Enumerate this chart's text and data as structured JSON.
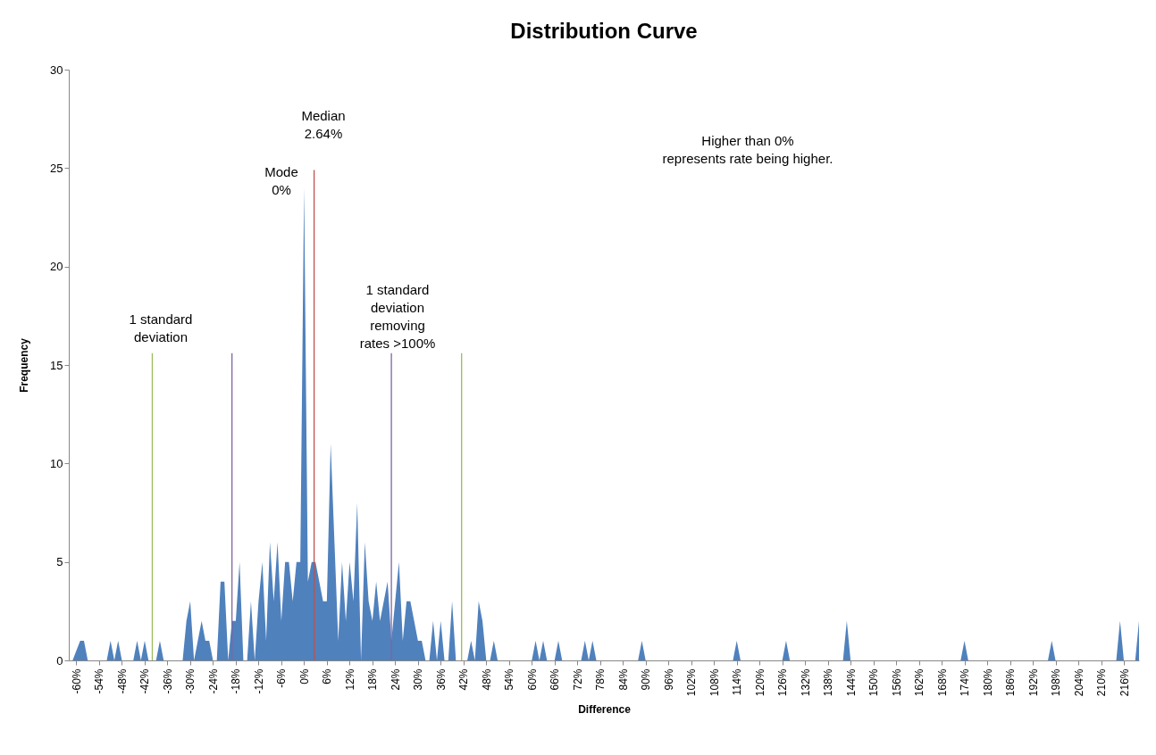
{
  "chart_data": {
    "type": "area",
    "title": "Distribution Curve",
    "xlabel": "Difference",
    "ylabel": "Frequency",
    "x": [
      -61,
      -59,
      -58,
      -57,
      -52,
      -51,
      -50,
      -49,
      -48,
      -45,
      -44,
      -43,
      -42,
      -41,
      -39,
      -38,
      -37,
      -32,
      -31,
      -30,
      -29,
      -27,
      -26,
      -25,
      -24,
      -23,
      -22,
      -21,
      -20,
      -19,
      -18,
      -17,
      -16,
      -15,
      -14,
      -13,
      -12,
      -11,
      -10,
      -9,
      -8,
      -7,
      -6,
      -5,
      -4,
      -3,
      -2,
      -1,
      0,
      1,
      2,
      3,
      4,
      5,
      6,
      7,
      8,
      9,
      10,
      11,
      12,
      13,
      14,
      15,
      16,
      17,
      18,
      19,
      20,
      21,
      22,
      23,
      24,
      25,
      26,
      27,
      28,
      29,
      30,
      31,
      32,
      33,
      34,
      35,
      36,
      37,
      38,
      39,
      40,
      43,
      44,
      45,
      46,
      47,
      48,
      49,
      50,
      51,
      60,
      61,
      62,
      63,
      64,
      66,
      67,
      68,
      73,
      74,
      75,
      76,
      77,
      88,
      89,
      90,
      113,
      114,
      115,
      126,
      127,
      128,
      142,
      143,
      144,
      173,
      174,
      175,
      196,
      197,
      198,
      214,
      215,
      216,
      219,
      220
    ],
    "series": [
      {
        "color": "#4f81bd",
        "values": [
          0,
          1,
          1,
          0,
          0,
          1,
          0,
          1,
          0,
          0,
          1,
          0,
          1,
          0,
          0,
          1,
          0,
          0,
          2,
          3,
          0,
          2,
          1,
          1,
          0,
          0,
          4,
          4,
          0,
          2,
          2,
          5,
          0,
          0,
          3,
          0,
          3,
          5,
          1,
          6,
          3,
          6,
          2,
          5,
          5,
          3,
          5,
          5,
          24,
          4,
          5,
          5,
          4,
          3,
          3,
          11,
          6,
          1,
          5,
          2,
          5,
          3,
          8,
          0,
          6,
          3,
          2,
          4,
          2,
          3,
          4,
          1,
          3,
          5,
          1,
          3,
          3,
          2,
          1,
          1,
          0,
          0,
          2,
          0,
          2,
          0,
          0,
          3,
          0,
          0,
          1,
          0,
          3,
          2,
          0,
          0,
          1,
          0,
          0,
          1,
          0,
          1,
          0,
          0,
          1,
          0,
          0,
          1,
          0,
          1,
          0,
          0,
          1,
          0,
          0,
          1,
          0,
          0,
          1,
          0,
          0,
          2,
          0,
          0,
          1,
          0,
          0,
          1,
          0,
          0,
          2,
          0,
          0,
          2
        ]
      },
      {
        "type": "line",
        "color": "#9bbb59",
        "x": [
          -40,
          -40
        ],
        "values": [
          0,
          15.6
        ]
      },
      {
        "type": "line",
        "color": "#8064a2",
        "x": [
          -19,
          -19
        ],
        "values": [
          0,
          15.6
        ]
      },
      {
        "type": "line",
        "color": "#c0504d",
        "x": [
          2.64,
          2.64
        ],
        "values": [
          0,
          24.9
        ]
      },
      {
        "type": "line",
        "color": "#8064a2",
        "x": [
          23,
          23
        ],
        "values": [
          0,
          15.6
        ]
      },
      {
        "type": "line",
        "color": "#9bbb59",
        "x": [
          41.5,
          41.5
        ],
        "values": [
          0,
          15.6
        ]
      }
    ],
    "xlim": [
      -62,
      220
    ],
    "xticks": [
      {
        "value": -60,
        "label": "-60%"
      },
      {
        "value": -54,
        "label": "-54%"
      },
      {
        "value": -48,
        "label": "-48%"
      },
      {
        "value": -42,
        "label": "-42%"
      },
      {
        "value": -36,
        "label": "-36%"
      },
      {
        "value": -30,
        "label": "-30%"
      },
      {
        "value": -24,
        "label": "-24%"
      },
      {
        "value": -18,
        "label": "-18%"
      },
      {
        "value": -12,
        "label": "-12%"
      },
      {
        "value": -6,
        "label": "-6%"
      },
      {
        "value": 0,
        "label": "0%"
      },
      {
        "value": 6,
        "label": "6%"
      },
      {
        "value": 12,
        "label": "12%"
      },
      {
        "value": 18,
        "label": "18%"
      },
      {
        "value": 24,
        "label": "24%"
      },
      {
        "value": 30,
        "label": "30%"
      },
      {
        "value": 36,
        "label": "36%"
      },
      {
        "value": 42,
        "label": "42%"
      },
      {
        "value": 48,
        "label": "48%"
      },
      {
        "value": 54,
        "label": "54%"
      },
      {
        "value": 60,
        "label": "60%"
      },
      {
        "value": 66,
        "label": "66%"
      },
      {
        "value": 72,
        "label": "72%"
      },
      {
        "value": 78,
        "label": "78%"
      },
      {
        "value": 84,
        "label": "84%"
      },
      {
        "value": 90,
        "label": "90%"
      },
      {
        "value": 96,
        "label": "96%"
      },
      {
        "value": 102,
        "label": "102%"
      },
      {
        "value": 108,
        "label": "108%"
      },
      {
        "value": 114,
        "label": "114%"
      },
      {
        "value": 120,
        "label": "120%"
      },
      {
        "value": 126,
        "label": "126%"
      },
      {
        "value": 132,
        "label": "132%"
      },
      {
        "value": 138,
        "label": "138%"
      },
      {
        "value": 144,
        "label": "144%"
      },
      {
        "value": 150,
        "label": "150%"
      },
      {
        "value": 156,
        "label": "156%"
      },
      {
        "value": 162,
        "label": "162%"
      },
      {
        "value": 168,
        "label": "168%"
      },
      {
        "value": 174,
        "label": "174%"
      },
      {
        "value": 180,
        "label": "180%"
      },
      {
        "value": 186,
        "label": "186%"
      },
      {
        "value": 192,
        "label": "192%"
      },
      {
        "value": 198,
        "label": "198%"
      },
      {
        "value": 204,
        "label": "204%"
      },
      {
        "value": 210,
        "label": "210%"
      },
      {
        "value": 216,
        "label": "216%"
      }
    ],
    "ylim": [
      0,
      30
    ],
    "yticks": [
      0,
      5,
      10,
      15,
      20,
      25,
      30
    ],
    "annotations": [
      "1 standard\ndeviation",
      "Mode\n0%",
      "Median\n2.64%",
      "1 standard\ndeviation\nremoving\nrates  >100%",
      "Higher than 0%\nrepresents rate being higher."
    ]
  }
}
